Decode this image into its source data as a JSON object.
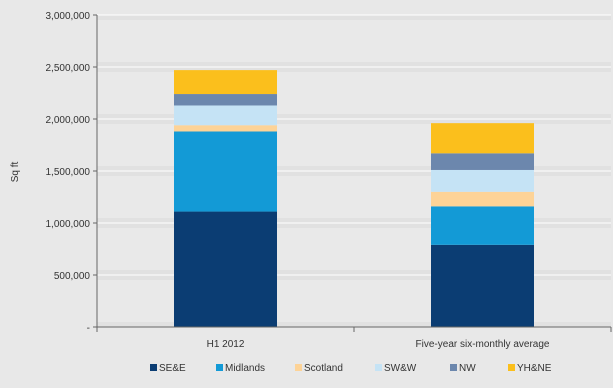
{
  "chart_data": {
    "type": "bar",
    "stacked": true,
    "title": "",
    "xlabel": "",
    "ylabel": "Sq ft",
    "ylim": [
      0,
      3000000
    ],
    "yticks": [
      0,
      500000,
      1000000,
      1500000,
      2000000,
      2500000,
      3000000
    ],
    "ytick_labels": [
      "-",
      "500,000",
      "1,000,000",
      "1,500,000",
      "2,000,000",
      "2,500,000",
      "3,000,000"
    ],
    "grid": true,
    "legend_position": "bottom",
    "categories": [
      "H1 2012",
      "Five-year six-monthly average"
    ],
    "series": [
      {
        "name": "SE&E",
        "color": "#0b3d73",
        "values": [
          1110000,
          790000
        ]
      },
      {
        "name": "Midlands",
        "color": "#139ad6",
        "values": [
          770000,
          370000
        ]
      },
      {
        "name": "Scotland",
        "color": "#fdd397",
        "values": [
          60000,
          140000
        ]
      },
      {
        "name": "SW&W",
        "color": "#c5e3f5",
        "values": [
          190000,
          210000
        ]
      },
      {
        "name": "NW",
        "color": "#6c87ad",
        "values": [
          110000,
          160000
        ]
      },
      {
        "name": "YH&NE",
        "color": "#fbbf1c",
        "values": [
          230000,
          290000
        ]
      }
    ]
  }
}
